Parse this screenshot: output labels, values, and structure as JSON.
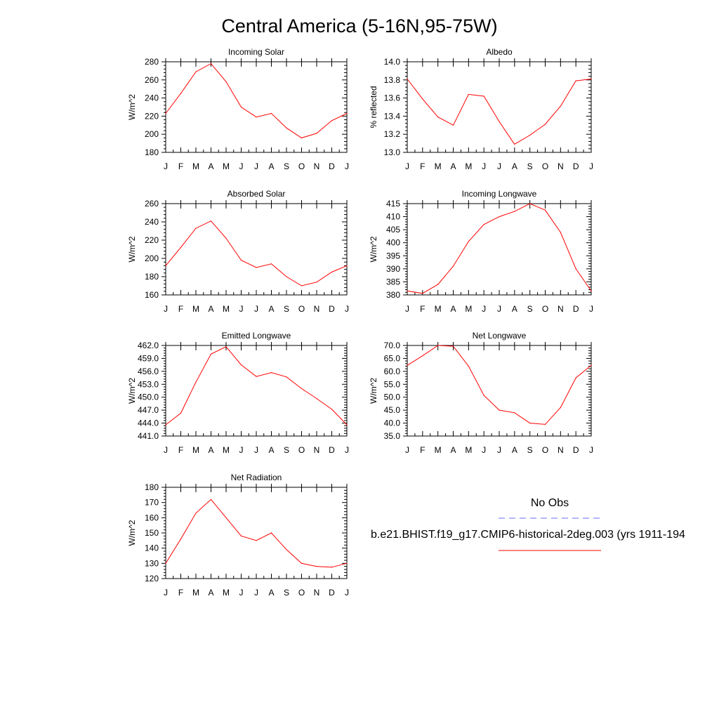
{
  "page_title": "Central America (5-16N,95-75W)",
  "legend": {
    "obs_label": "No Obs",
    "obs_color": "#6b6bff",
    "model_label": "b.e21.BHIST.f19_g17.CMIP6-historical-2deg.003 (yrs 1911-194",
    "model_color": "#ff0000"
  },
  "chart_data": [
    {
      "type": "line",
      "title": "Incoming Solar",
      "ylabel": "W/m^2",
      "xlabel": "",
      "categories": [
        "J",
        "F",
        "M",
        "A",
        "M",
        "J",
        "J",
        "A",
        "S",
        "O",
        "N",
        "D",
        "J"
      ],
      "ylim": [
        180,
        280
      ],
      "yticks": [
        180,
        200,
        220,
        240,
        260,
        280
      ],
      "ytick_labels": [
        "180",
        "200",
        "220",
        "240",
        "260",
        "280"
      ],
      "grid": false,
      "series": [
        {
          "color": "#ff0000",
          "values": [
            223,
            245,
            269,
            278,
            258,
            230,
            219,
            223,
            207,
            196,
            201,
            215,
            223
          ]
        }
      ]
    },
    {
      "type": "line",
      "title": "Albedo",
      "ylabel": "% reflected",
      "xlabel": "",
      "categories": [
        "J",
        "F",
        "M",
        "A",
        "M",
        "J",
        "J",
        "A",
        "S",
        "O",
        "N",
        "D",
        "J"
      ],
      "ylim": [
        13.0,
        14.0
      ],
      "yticks": [
        13.0,
        13.2,
        13.4,
        13.6,
        13.8,
        14.0
      ],
      "ytick_labels": [
        "13.0",
        "13.2",
        "13.4",
        "13.6",
        "13.8",
        "14.0"
      ],
      "grid": false,
      "series": [
        {
          "color": "#ff0000",
          "values": [
            13.81,
            13.59,
            13.39,
            13.3,
            13.64,
            13.62,
            13.34,
            13.09,
            13.19,
            13.31,
            13.51,
            13.79,
            13.81
          ]
        }
      ]
    },
    {
      "type": "line",
      "title": "Absorbed Solar",
      "ylabel": "W/m^2",
      "xlabel": "",
      "categories": [
        "J",
        "F",
        "M",
        "A",
        "M",
        "J",
        "J",
        "A",
        "S",
        "O",
        "N",
        "D",
        "J"
      ],
      "ylim": [
        160,
        260
      ],
      "yticks": [
        160,
        180,
        200,
        220,
        240,
        260
      ],
      "ytick_labels": [
        "160",
        "180",
        "200",
        "220",
        "240",
        "260"
      ],
      "grid": false,
      "series": [
        {
          "color": "#ff0000",
          "values": [
            192,
            212,
            233,
            241,
            222,
            198,
            190,
            194,
            180,
            170,
            174,
            185,
            192
          ]
        }
      ]
    },
    {
      "type": "line",
      "title": "Incoming Longwave",
      "ylabel": "W/m^2",
      "xlabel": "",
      "categories": [
        "J",
        "F",
        "M",
        "A",
        "M",
        "J",
        "J",
        "A",
        "S",
        "O",
        "N",
        "D",
        "J"
      ],
      "ylim": [
        380,
        415
      ],
      "yticks": [
        380,
        385,
        390,
        395,
        400,
        405,
        410,
        415
      ],
      "ytick_labels": [
        "380",
        "385",
        "390",
        "395",
        "400",
        "405",
        "410",
        "415"
      ],
      "grid": false,
      "series": [
        {
          "color": "#ff0000",
          "values": [
            381.5,
            380.6,
            384.0,
            391.0,
            400.5,
            407.0,
            410.0,
            412.0,
            415.0,
            412.5,
            404.0,
            390.0,
            381.5
          ]
        }
      ]
    },
    {
      "type": "line",
      "title": "Emitted Longwave",
      "ylabel": "W/m^2",
      "xlabel": "",
      "categories": [
        "J",
        "F",
        "M",
        "A",
        "M",
        "J",
        "J",
        "A",
        "S",
        "O",
        "N",
        "D",
        "J"
      ],
      "ylim": [
        441,
        462
      ],
      "yticks": [
        441,
        444,
        447,
        450,
        453,
        456,
        459,
        462
      ],
      "ytick_labels": [
        "441.0",
        "444.0",
        "447.0",
        "450.0",
        "453.0",
        "456.0",
        "459.0",
        "462.0"
      ],
      "grid": false,
      "series": [
        {
          "color": "#ff0000",
          "values": [
            443.6,
            446.3,
            453.5,
            460.0,
            461.7,
            457.5,
            454.8,
            455.7,
            454.7,
            452.0,
            449.7,
            447.2,
            443.6
          ]
        }
      ]
    },
    {
      "type": "line",
      "title": "Net Longwave",
      "ylabel": "W/m^2",
      "xlabel": "",
      "categories": [
        "J",
        "F",
        "M",
        "A",
        "M",
        "J",
        "J",
        "A",
        "S",
        "O",
        "N",
        "D",
        "J"
      ],
      "ylim": [
        35,
        70
      ],
      "yticks": [
        35,
        40,
        45,
        50,
        55,
        60,
        65,
        70
      ],
      "ytick_labels": [
        "35.0",
        "40.0",
        "45.0",
        "50.0",
        "55.0",
        "60.0",
        "65.0",
        "70.0"
      ],
      "grid": false,
      "series": [
        {
          "color": "#ff0000",
          "values": [
            62.3,
            66.0,
            70.0,
            69.7,
            62.0,
            50.7,
            45.0,
            44.0,
            40.0,
            39.5,
            46.0,
            57.5,
            62.3
          ]
        }
      ]
    },
    {
      "type": "line",
      "title": "Net Radiation",
      "ylabel": "W/m^2",
      "xlabel": "",
      "categories": [
        "J",
        "F",
        "M",
        "A",
        "M",
        "J",
        "J",
        "A",
        "S",
        "O",
        "N",
        "D",
        "J"
      ],
      "ylim": [
        120,
        180
      ],
      "yticks": [
        120,
        130,
        140,
        150,
        160,
        170,
        180
      ],
      "ytick_labels": [
        "120",
        "130",
        "140",
        "150",
        "160",
        "170",
        "180"
      ],
      "grid": false,
      "series": [
        {
          "color": "#ff0000",
          "values": [
            130,
            146,
            163,
            172,
            160,
            148,
            145,
            150,
            139,
            130,
            128,
            127.5,
            130
          ]
        }
      ]
    }
  ]
}
